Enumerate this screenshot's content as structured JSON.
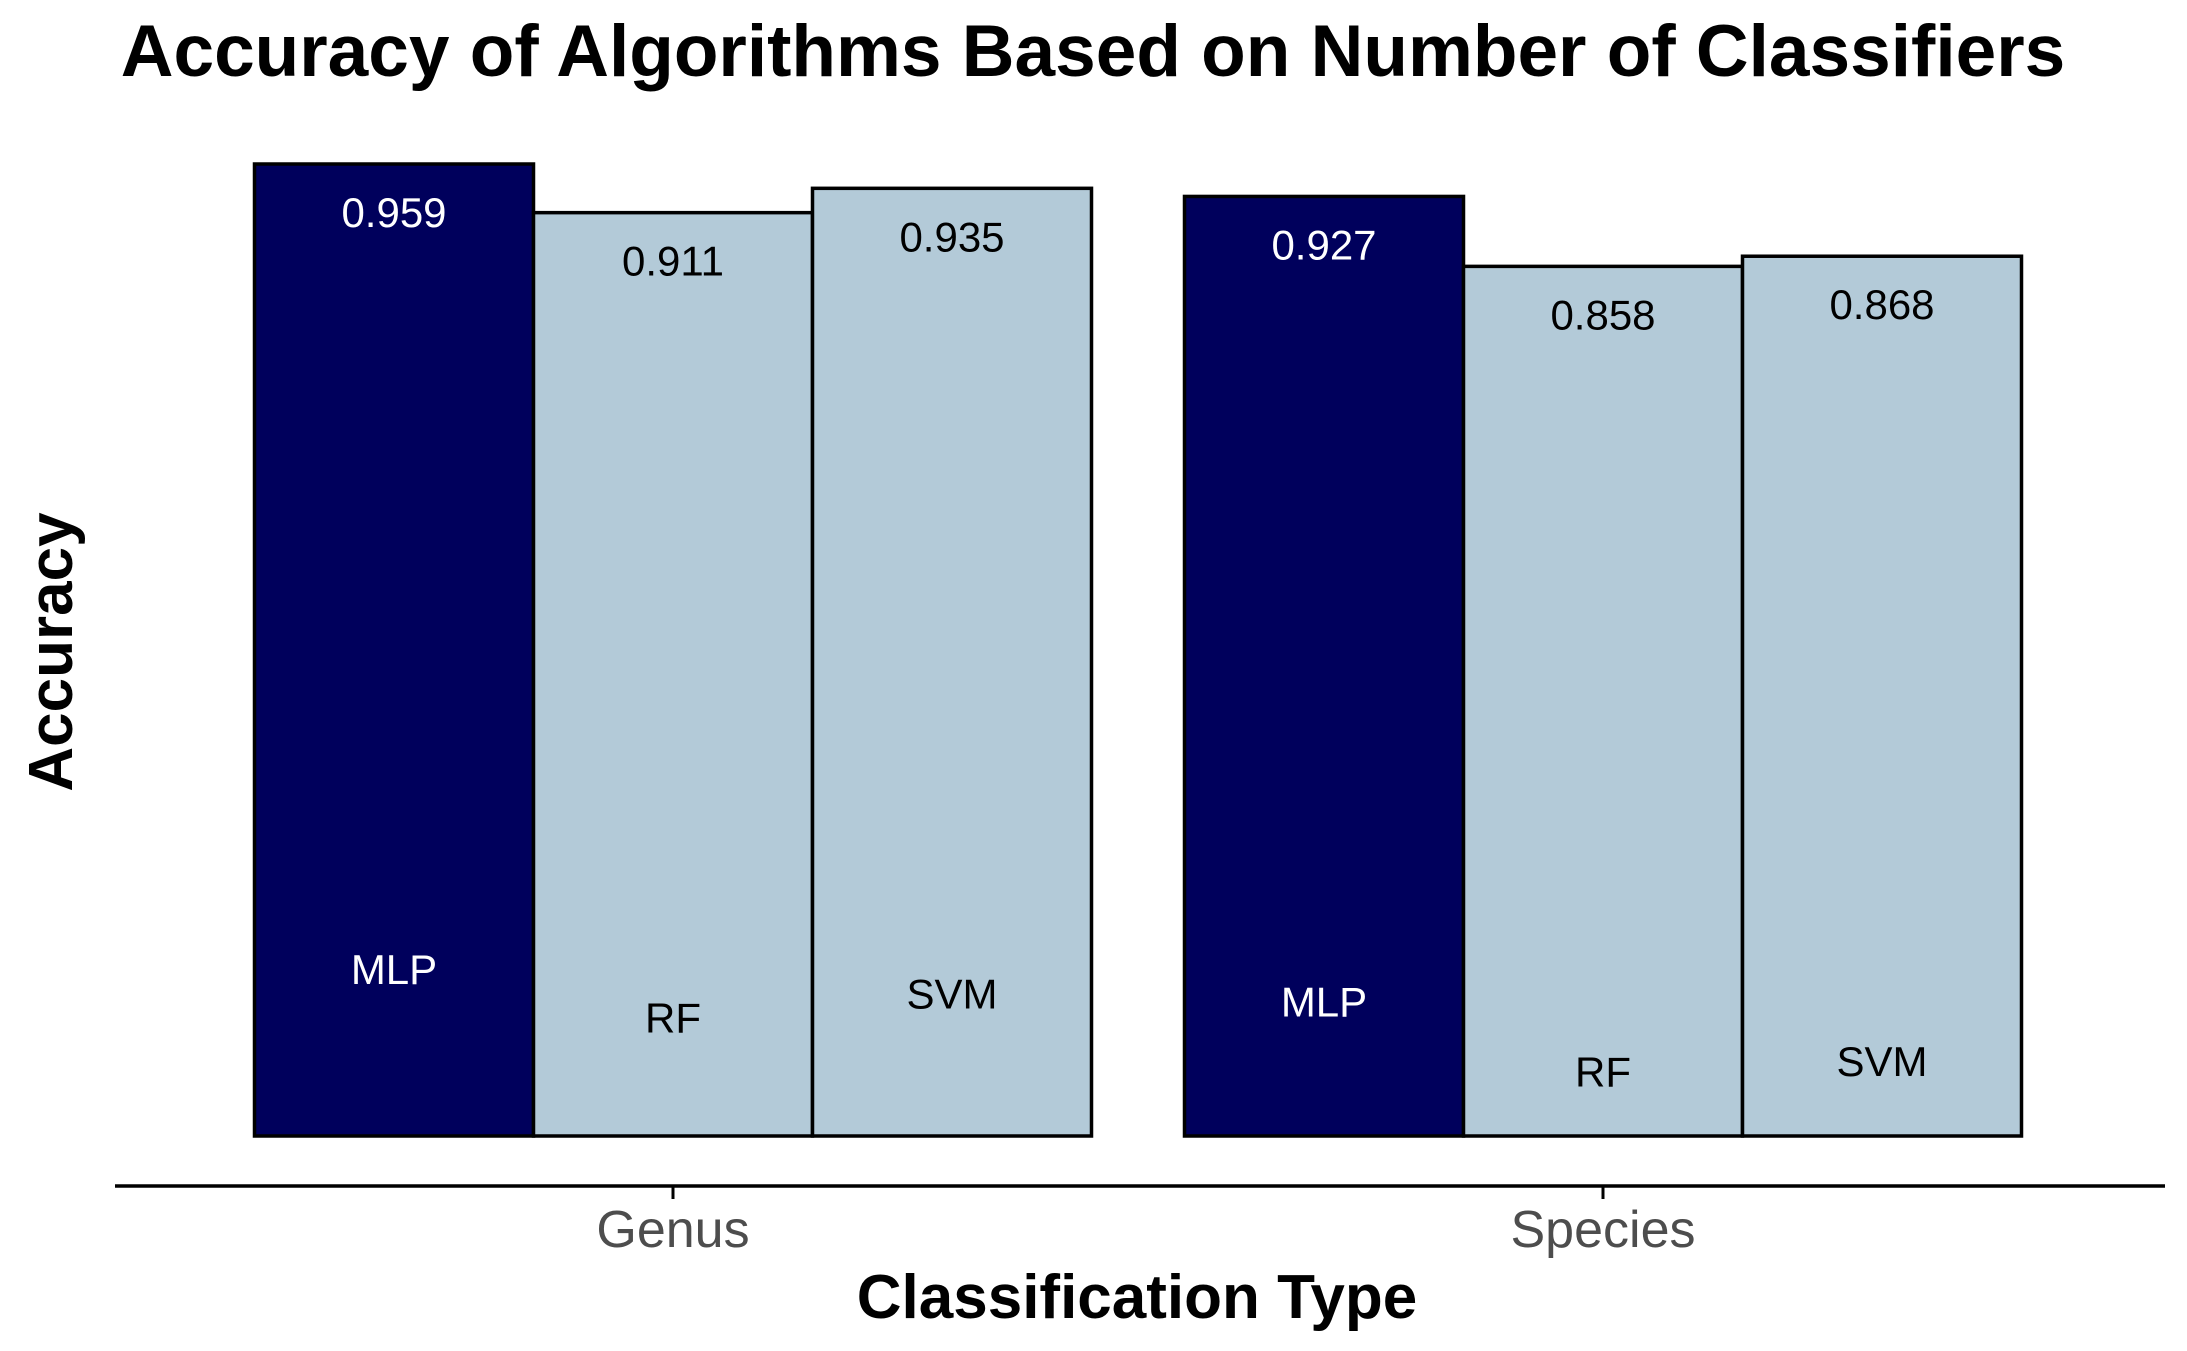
{
  "chart_data": {
    "type": "bar",
    "title": "Accuracy of Algorithms Based on Number of Classifiers",
    "xlabel": "Classification Type",
    "ylabel": "Accuracy",
    "categories": [
      "Genus",
      "Species"
    ],
    "series": [
      {
        "name": "MLP",
        "values": [
          0.959,
          0.927
        ],
        "color": "#00005c",
        "text_color": "#ffffff"
      },
      {
        "name": "RF",
        "values": [
          0.911,
          0.858
        ],
        "color": "#b3cad8",
        "text_color": "#000000"
      },
      {
        "name": "SVM",
        "values": [
          0.935,
          0.868
        ],
        "color": "#b3cad8",
        "text_color": "#000000"
      }
    ],
    "value_labels": [
      [
        "0.959",
        "0.927"
      ],
      [
        "0.911",
        "0.858"
      ],
      [
        "0.935",
        "0.868"
      ]
    ],
    "ylim": [
      0,
      1
    ],
    "grid": false,
    "legend": "none",
    "y_axis_visible": false
  }
}
